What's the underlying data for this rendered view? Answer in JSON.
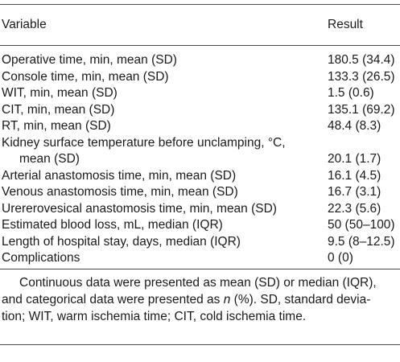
{
  "table": {
    "header": {
      "variable": "Variable",
      "result": "Result"
    },
    "rows": [
      {
        "variable": "Operative time, min, mean (SD)",
        "result": "180.5 (34.4)"
      },
      {
        "variable": "Console time, min, mean (SD)",
        "result": "133.3 (26.5)"
      },
      {
        "variable": "WIT, min, mean (SD)",
        "result": "1.5 (0.6)"
      },
      {
        "variable": "CIT, min, mean (SD)",
        "result": "135.1 (69.2)"
      },
      {
        "variable": "RT, min, mean (SD)",
        "result": "48.4 (8.3)"
      },
      {
        "variable": "Kidney surface temperature before unclamping, °C,",
        "variable_cont": "mean (SD)",
        "result": "20.1 (1.7)"
      },
      {
        "variable": "Arterial anastomosis time, min, mean (SD)",
        "result": "16.1 (4.5)"
      },
      {
        "variable": "Venous anastomosis time, min, mean (SD)",
        "result": "16.7 (3.1)"
      },
      {
        "variable": "Urererovesical anastomosis time, min, mean (SD)",
        "result": "22.3 (5.6)"
      },
      {
        "variable": "Estimated blood loss, mL, median (IQR)",
        "result": "50 (50–100)"
      },
      {
        "variable": "Length of hospital stay, days, median (IQR)",
        "result": "9.5 (8–12.5)"
      },
      {
        "variable": "Complications",
        "result": "0 (0)"
      }
    ]
  },
  "footnote": {
    "line1": "Continuous data were presented as mean (SD) or median (IQR),",
    "line2_pre": "and categorical data were presented as ",
    "line2_n": "n",
    "line2_post": " (%). SD, standard devia-",
    "line3": "tion; WIT, warm ischemia time; CIT, cold ischemia time."
  }
}
